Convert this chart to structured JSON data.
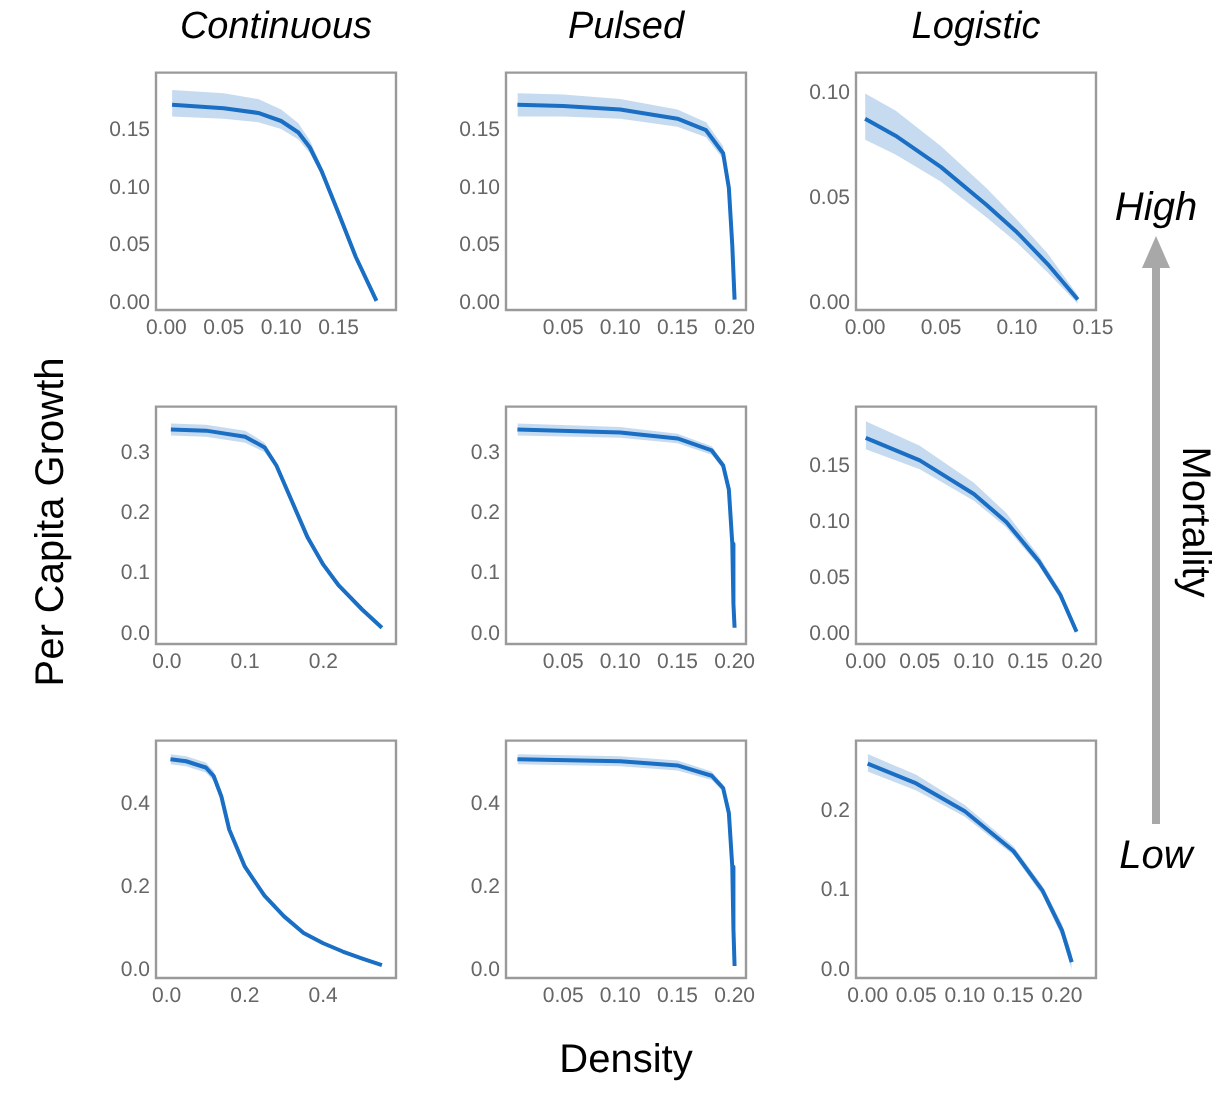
{
  "chart_data": [
    {
      "type": "line",
      "title": "Continuous",
      "x": [
        0.005,
        0.05,
        0.08,
        0.1,
        0.115,
        0.125,
        0.135,
        0.15,
        0.165,
        0.183
      ],
      "series": [
        {
          "color": "#1a6fc4",
          "values": [
            0.172,
            0.169,
            0.165,
            0.158,
            0.148,
            0.135,
            0.115,
            0.078,
            0.04,
            0.002
          ],
          "lower": [
            0.162,
            0.16,
            0.157,
            0.151,
            0.142,
            0.13,
            0.111,
            0.076,
            0.039,
            0.002
          ],
          "upper": [
            0.185,
            0.182,
            0.177,
            0.168,
            0.156,
            0.141,
            0.119,
            0.08,
            0.041,
            0.002
          ]
        }
      ],
      "xlim": [
        -0.009,
        0.2
      ],
      "ylim": [
        -0.006,
        0.2
      ],
      "xticks": [
        {
          "value": 0,
          "label": "0.00"
        },
        {
          "value": 0.05,
          "label": "0.05"
        },
        {
          "value": 0.1,
          "label": "0.10"
        },
        {
          "value": 0.15,
          "label": "0.15"
        }
      ],
      "yticks": [
        {
          "value": 0,
          "label": "0.00"
        },
        {
          "value": 0.05,
          "label": "0.05"
        },
        {
          "value": 0.1,
          "label": "0.10"
        },
        {
          "value": 0.15,
          "label": "0.15"
        }
      ],
      "grid": false,
      "legend": false
    },
    {
      "type": "line",
      "title": "Pulsed",
      "x": [
        0.01,
        0.05,
        0.1,
        0.15,
        0.175,
        0.19,
        0.195,
        0.198,
        0.2
      ],
      "series": [
        {
          "color": "#1a6fc4",
          "values": [
            0.172,
            0.171,
            0.168,
            0.16,
            0.15,
            0.13,
            0.1,
            0.05,
            0.003
          ],
          "lower": [
            0.162,
            0.162,
            0.16,
            0.153,
            0.144,
            0.125,
            0.097,
            0.048,
            0.003
          ],
          "upper": [
            0.182,
            0.181,
            0.177,
            0.168,
            0.157,
            0.136,
            0.104,
            0.052,
            0.003
          ]
        }
      ],
      "xlim": [
        0,
        0.21
      ],
      "ylim": [
        -0.006,
        0.2
      ],
      "xticks": [
        {
          "value": 0.05,
          "label": "0.05"
        },
        {
          "value": 0.1,
          "label": "0.10"
        },
        {
          "value": 0.15,
          "label": "0.15"
        },
        {
          "value": 0.2,
          "label": "0.20"
        }
      ],
      "yticks": [
        {
          "value": 0,
          "label": "0.00"
        },
        {
          "value": 0.05,
          "label": "0.05"
        },
        {
          "value": 0.1,
          "label": "0.10"
        },
        {
          "value": 0.15,
          "label": "0.15"
        }
      ],
      "grid": false,
      "legend": false
    },
    {
      "type": "line",
      "title": "Logistic",
      "annotations": [
        "High"
      ],
      "x": [
        0,
        0.02,
        0.05,
        0.08,
        0.1,
        0.12,
        0.14
      ],
      "series": [
        {
          "color": "#1a6fc4",
          "values": [
            0.088,
            0.08,
            0.065,
            0.047,
            0.034,
            0.019,
            0.002
          ],
          "lower": [
            0.078,
            0.071,
            0.058,
            0.041,
            0.029,
            0.015,
            0
          ],
          "upper": [
            0.1,
            0.092,
            0.075,
            0.055,
            0.04,
            0.024,
            0.004
          ]
        }
      ],
      "xlim": [
        -0.006,
        0.152
      ],
      "ylim": [
        -0.003,
        0.11
      ],
      "xticks": [
        {
          "value": 0,
          "label": "0.00"
        },
        {
          "value": 0.05,
          "label": "0.05"
        },
        {
          "value": 0.1,
          "label": "0.10"
        },
        {
          "value": 0.15,
          "label": "0.15"
        }
      ],
      "yticks": [
        {
          "value": 0,
          "label": "0.00"
        },
        {
          "value": 0.05,
          "label": "0.05"
        },
        {
          "value": 0.1,
          "label": "0.10"
        }
      ],
      "grid": false,
      "legend": false
    },
    {
      "type": "line",
      "ylabel": "Per Capita Growth",
      "x": [
        0.005,
        0.05,
        0.1,
        0.125,
        0.14,
        0.16,
        0.18,
        0.2,
        0.22,
        0.25,
        0.275
      ],
      "series": [
        {
          "color": "#1a6fc4",
          "values": [
            0.34,
            0.338,
            0.328,
            0.31,
            0.28,
            0.22,
            0.16,
            0.115,
            0.08,
            0.04,
            0.01
          ],
          "lower": [
            0.33,
            0.328,
            0.318,
            0.302,
            0.275,
            0.22,
            0.16,
            0.115,
            0.08,
            0.04,
            0.01
          ],
          "upper": [
            0.35,
            0.348,
            0.338,
            0.318,
            0.285,
            0.22,
            0.16,
            0.115,
            0.08,
            0.04,
            0.01
          ]
        }
      ],
      "xlim": [
        -0.014,
        0.293
      ],
      "ylim": [
        -0.017,
        0.378
      ],
      "xticks": [
        {
          "value": 0,
          "label": "0.0"
        },
        0.1,
        0.2
      ],
      "yticks": [
        {
          "value": 0,
          "label": "0.0"
        },
        0.1,
        0.2,
        0.3
      ],
      "grid": false,
      "legend": false
    },
    {
      "type": "line",
      "x": [
        0.01,
        0.1,
        0.15,
        0.18,
        0.19,
        0.195,
        0.198,
        0.199,
        0.2
      ],
      "series": [
        {
          "color": "#1a6fc4",
          "values": [
            0.34,
            0.335,
            0.325,
            0.305,
            0.28,
            0.24,
            0.15,
            0.05,
            0.01
          ],
          "lower": [
            0.33,
            0.326,
            0.317,
            0.298,
            0.274,
            0.236,
            0.148,
            0.05,
            0.01
          ],
          "upper": [
            0.35,
            0.344,
            0.333,
            0.312,
            0.286,
            0.244,
            0.152,
            0.05,
            0.01
          ]
        }
      ],
      "xlim": [
        0,
        0.21
      ],
      "ylim": [
        -0.017,
        0.378
      ],
      "xticks": [
        {
          "value": 0.05,
          "label": "0.05"
        },
        {
          "value": 0.1,
          "label": "0.10"
        },
        {
          "value": 0.15,
          "label": "0.15"
        },
        {
          "value": 0.2,
          "label": "0.20"
        }
      ],
      "yticks": [
        {
          "value": 0,
          "label": "0.0"
        },
        0.1,
        0.2,
        0.3
      ],
      "grid": false,
      "legend": false
    },
    {
      "type": "line",
      "annotations": [
        "Mortality"
      ],
      "x": [
        0,
        0.05,
        0.1,
        0.13,
        0.16,
        0.18,
        0.195
      ],
      "series": [
        {
          "color": "#1a6fc4",
          "values": [
            0.175,
            0.155,
            0.125,
            0.1,
            0.065,
            0.035,
            0.002
          ],
          "lower": [
            0.165,
            0.147,
            0.119,
            0.095,
            0.061,
            0.031,
            0
          ],
          "upper": [
            0.19,
            0.168,
            0.135,
            0.108,
            0.07,
            0.039,
            0.004
          ]
        }
      ],
      "xlim": [
        -0.009,
        0.213
      ],
      "ylim": [
        -0.009,
        0.203
      ],
      "xticks": [
        {
          "value": 0,
          "label": "0.00"
        },
        {
          "value": 0.05,
          "label": "0.05"
        },
        {
          "value": 0.1,
          "label": "0.10"
        },
        {
          "value": 0.15,
          "label": "0.15"
        },
        {
          "value": 0.2,
          "label": "0.20"
        }
      ],
      "yticks": [
        {
          "value": 0,
          "label": "0.00"
        },
        {
          "value": 0.05,
          "label": "0.05"
        },
        {
          "value": 0.1,
          "label": "0.10"
        },
        {
          "value": 0.15,
          "label": "0.15"
        }
      ],
      "grid": false,
      "legend": false
    },
    {
      "type": "line",
      "x": [
        0.01,
        0.05,
        0.1,
        0.12,
        0.14,
        0.16,
        0.2,
        0.25,
        0.3,
        0.35,
        0.4,
        0.45,
        0.5,
        0.55
      ],
      "series": [
        {
          "color": "#1a6fc4",
          "values": [
            0.51,
            0.505,
            0.49,
            0.47,
            0.42,
            0.34,
            0.25,
            0.18,
            0.13,
            0.09,
            0.065,
            0.045,
            0.028,
            0.012
          ],
          "lower": [
            0.498,
            0.493,
            0.478,
            0.458,
            0.41,
            0.34,
            0.25,
            0.18,
            0.13,
            0.09,
            0.065,
            0.045,
            0.028,
            0.012
          ],
          "upper": [
            0.522,
            0.517,
            0.502,
            0.482,
            0.43,
            0.34,
            0.25,
            0.18,
            0.13,
            0.09,
            0.065,
            0.045,
            0.028,
            0.012
          ]
        }
      ],
      "xlim": [
        -0.027,
        0.586
      ],
      "ylim": [
        -0.019,
        0.555
      ],
      "xticks": [
        {
          "value": 0,
          "label": "0.0"
        },
        0.2,
        0.4
      ],
      "yticks": [
        {
          "value": 0,
          "label": "0.0"
        },
        0.2,
        0.4
      ],
      "grid": false,
      "legend": false
    },
    {
      "type": "line",
      "xlabel": "Density",
      "x": [
        0.01,
        0.1,
        0.15,
        0.18,
        0.19,
        0.195,
        0.198,
        0.199,
        0.2
      ],
      "series": [
        {
          "color": "#1a6fc4",
          "values": [
            0.51,
            0.505,
            0.495,
            0.47,
            0.44,
            0.38,
            0.25,
            0.1,
            0.01
          ],
          "lower": [
            0.498,
            0.493,
            0.483,
            0.46,
            0.432,
            0.374,
            0.247,
            0.1,
            0.01
          ],
          "upper": [
            0.522,
            0.517,
            0.507,
            0.48,
            0.448,
            0.386,
            0.253,
            0.1,
            0.01
          ]
        }
      ],
      "xlim": [
        0,
        0.21
      ],
      "ylim": [
        -0.019,
        0.555
      ],
      "xticks": [
        {
          "value": 0.05,
          "label": "0.05"
        },
        {
          "value": 0.1,
          "label": "0.10"
        },
        {
          "value": 0.15,
          "label": "0.15"
        },
        {
          "value": 0.2,
          "label": "0.20"
        }
      ],
      "yticks": [
        {
          "value": 0,
          "label": "0.0"
        },
        0.2,
        0.4
      ],
      "grid": false,
      "legend": false
    },
    {
      "type": "line",
      "annotations": [
        "Low"
      ],
      "x": [
        0,
        0.05,
        0.1,
        0.15,
        0.18,
        0.2,
        0.21
      ],
      "series": [
        {
          "color": "#1a6fc4",
          "values": [
            0.26,
            0.235,
            0.2,
            0.15,
            0.1,
            0.05,
            0.01
          ],
          "lower": [
            0.25,
            0.226,
            0.193,
            0.145,
            0.094,
            0.042,
            0
          ],
          "upper": [
            0.272,
            0.246,
            0.208,
            0.156,
            0.106,
            0.058,
            0.02
          ]
        }
      ],
      "xlim": [
        -0.012,
        0.235
      ],
      "ylim": [
        -0.01,
        0.289
      ],
      "xticks": [
        {
          "value": 0,
          "label": "0.00"
        },
        {
          "value": 0.05,
          "label": "0.05"
        },
        {
          "value": 0.1,
          "label": "0.10"
        },
        {
          "value": 0.15,
          "label": "0.15"
        },
        {
          "value": 0.2,
          "label": "0.20"
        }
      ],
      "yticks": [
        {
          "value": 0,
          "label": "0.0"
        },
        0.1,
        0.2
      ],
      "grid": false,
      "legend": false
    }
  ]
}
